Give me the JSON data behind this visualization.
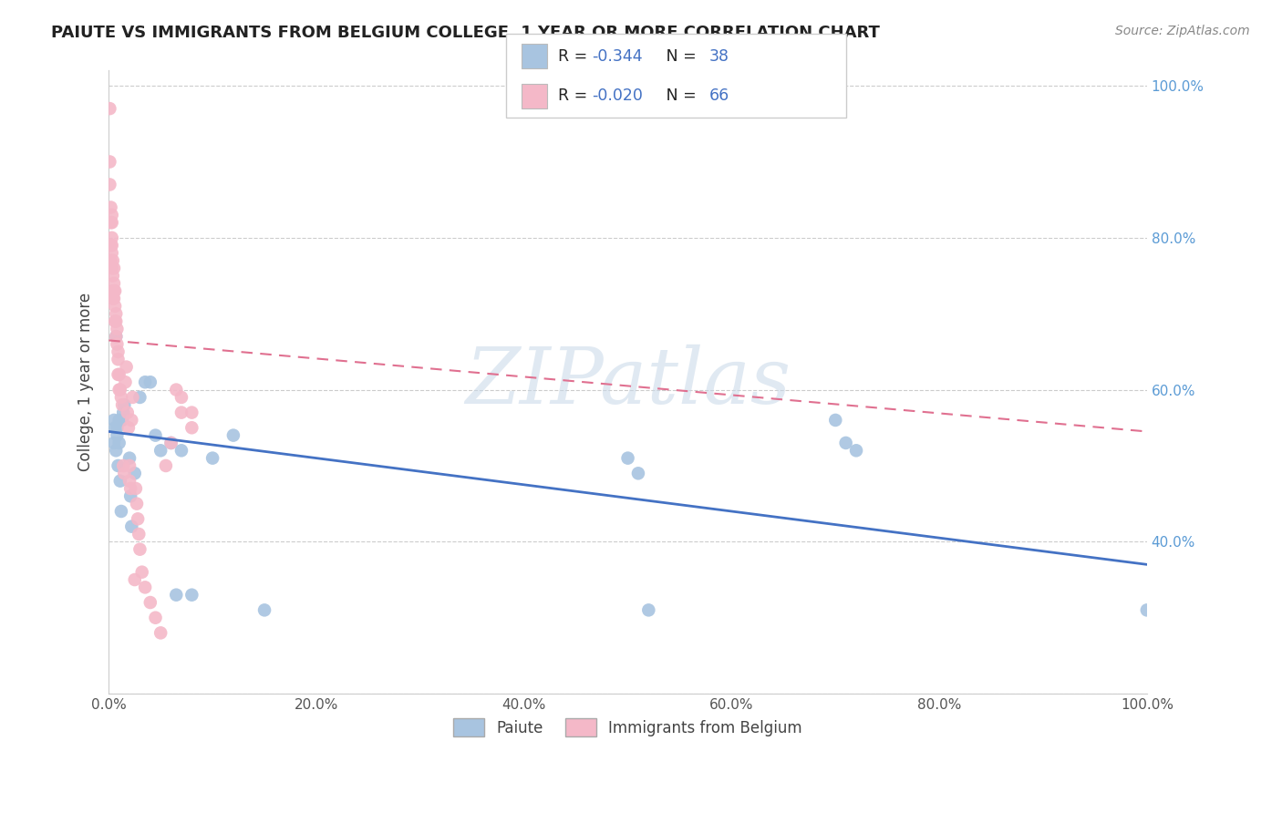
{
  "title": "PAIUTE VS IMMIGRANTS FROM BELGIUM COLLEGE, 1 YEAR OR MORE CORRELATION CHART",
  "source": "Source: ZipAtlas.com",
  "ylabel": "College, 1 year or more",
  "blue_color": "#a8c4e0",
  "pink_color": "#f4b8c8",
  "blue_line_color": "#4472c4",
  "pink_line_color": "#e07090",
  "blue_R": "-0.344",
  "blue_N": "38",
  "pink_R": "-0.020",
  "pink_N": "66",
  "watermark": "ZIPatlas",
  "blue_scatter_x": [
    0.005,
    0.005,
    0.006,
    0.007,
    0.008,
    0.008,
    0.009,
    0.01,
    0.01,
    0.011,
    0.012,
    0.013,
    0.014,
    0.015,
    0.02,
    0.021,
    0.022,
    0.025,
    0.03,
    0.035,
    0.04,
    0.045,
    0.05,
    0.06,
    0.065,
    0.07,
    0.08,
    0.1,
    0.12,
    0.15,
    0.5,
    0.51,
    0.52,
    0.7,
    0.71,
    0.72,
    1.0,
    0.007
  ],
  "blue_scatter_y": [
    0.56,
    0.53,
    0.55,
    0.52,
    0.54,
    0.55,
    0.5,
    0.56,
    0.53,
    0.48,
    0.44,
    0.56,
    0.57,
    0.58,
    0.51,
    0.46,
    0.42,
    0.49,
    0.59,
    0.61,
    0.61,
    0.54,
    0.52,
    0.53,
    0.33,
    0.52,
    0.33,
    0.51,
    0.54,
    0.31,
    0.51,
    0.49,
    0.31,
    0.56,
    0.53,
    0.52,
    0.31,
    0.67
  ],
  "pink_scatter_x": [
    0.001,
    0.001,
    0.001,
    0.002,
    0.002,
    0.002,
    0.002,
    0.003,
    0.003,
    0.003,
    0.003,
    0.003,
    0.003,
    0.004,
    0.004,
    0.004,
    0.004,
    0.005,
    0.005,
    0.005,
    0.005,
    0.006,
    0.006,
    0.006,
    0.007,
    0.007,
    0.007,
    0.008,
    0.008,
    0.009,
    0.009,
    0.009,
    0.01,
    0.01,
    0.011,
    0.012,
    0.013,
    0.014,
    0.015,
    0.016,
    0.017,
    0.018,
    0.019,
    0.02,
    0.02,
    0.021,
    0.022,
    0.023,
    0.025,
    0.026,
    0.027,
    0.028,
    0.029,
    0.03,
    0.032,
    0.035,
    0.04,
    0.045,
    0.05,
    0.055,
    0.06,
    0.065,
    0.07,
    0.07,
    0.08,
    0.08
  ],
  "pink_scatter_y": [
    0.97,
    0.9,
    0.87,
    0.84,
    0.82,
    0.79,
    0.77,
    0.83,
    0.82,
    0.8,
    0.79,
    0.78,
    0.76,
    0.77,
    0.75,
    0.73,
    0.72,
    0.76,
    0.74,
    0.73,
    0.72,
    0.73,
    0.71,
    0.69,
    0.7,
    0.69,
    0.67,
    0.68,
    0.66,
    0.65,
    0.64,
    0.62,
    0.62,
    0.6,
    0.6,
    0.59,
    0.58,
    0.5,
    0.49,
    0.61,
    0.63,
    0.57,
    0.55,
    0.5,
    0.48,
    0.47,
    0.56,
    0.59,
    0.35,
    0.47,
    0.45,
    0.43,
    0.41,
    0.39,
    0.36,
    0.34,
    0.32,
    0.3,
    0.28,
    0.5,
    0.53,
    0.6,
    0.59,
    0.57,
    0.55,
    0.57
  ],
  "blue_trend_x": [
    0.0,
    1.0
  ],
  "blue_trend_y": [
    0.545,
    0.37
  ],
  "pink_trend_x": [
    0.0,
    1.0
  ],
  "pink_trend_y": [
    0.665,
    0.545
  ],
  "xlim": [
    0.0,
    1.0
  ],
  "ylim": [
    0.2,
    1.02
  ],
  "yticks": [
    0.2,
    0.4,
    0.6,
    0.8,
    1.0
  ],
  "xticks": [
    0.0,
    0.2,
    0.4,
    0.6,
    0.8,
    1.0
  ]
}
